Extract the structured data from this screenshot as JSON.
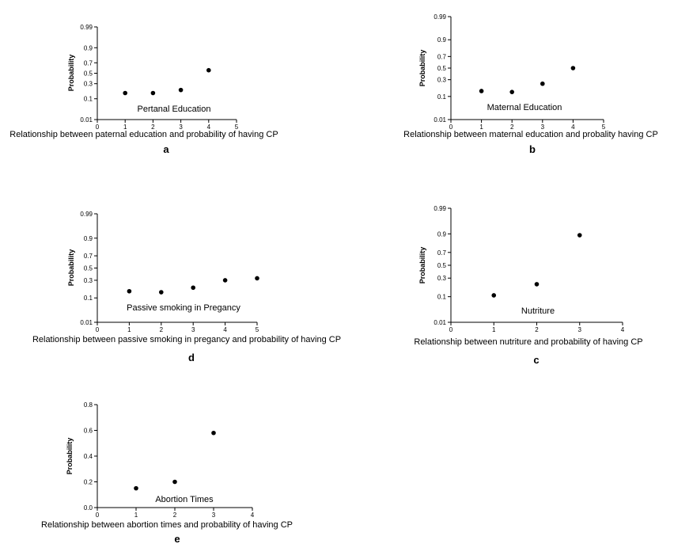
{
  "chart_data": [
    {
      "type": "scatter",
      "panel_label": "a",
      "ylabel": "Probability",
      "xlabel": "Relationship between paternal education and probability of having CP",
      "annotation": "Pertanal   Education",
      "xlim": [
        0,
        5
      ],
      "x_ticks": [
        "0",
        "1",
        "2",
        "3",
        "4",
        "5"
      ],
      "y_scale": "probit",
      "y_ticks": [
        "0.01",
        "0.1",
        "0.3",
        "0.5",
        "0.7",
        "0.9",
        "0.99"
      ],
      "x": [
        1,
        2,
        3,
        4
      ],
      "y": [
        0.16,
        0.16,
        0.2,
        0.56
      ]
    },
    {
      "type": "scatter",
      "panel_label": "b",
      "ylabel": "Probability",
      "xlabel": "Relationship between maternal education and probality having CP",
      "annotation": "Maternal   Education",
      "xlim": [
        0,
        5
      ],
      "x_ticks": [
        "0",
        "1",
        "2",
        "3",
        "4",
        "5"
      ],
      "y_scale": "probit",
      "y_ticks": [
        "0.01",
        "0.1",
        "0.3",
        "0.5",
        "0.7",
        "0.9",
        "0.99"
      ],
      "x": [
        1,
        2,
        3,
        4
      ],
      "y": [
        0.15,
        0.14,
        0.24,
        0.5
      ]
    },
    {
      "type": "scatter",
      "panel_label": "d",
      "ylabel": "Probability",
      "xlabel": "Relationship between passive smoking in pregancy and probability of having CP",
      "annotation": "Passive smoking in Pregancy",
      "xlim": [
        0,
        5
      ],
      "x_ticks": [
        "0",
        "1",
        "2",
        "3",
        "4",
        "5"
      ],
      "y_scale": "probit",
      "y_ticks": [
        "0.01",
        "0.1",
        "0.3",
        "0.5",
        "0.7",
        "0.9",
        "0.99"
      ],
      "x": [
        1,
        2,
        3,
        4,
        5
      ],
      "y": [
        0.16,
        0.15,
        0.2,
        0.3,
        0.33
      ]
    },
    {
      "type": "scatter",
      "panel_label": "c",
      "ylabel": "Probability",
      "xlabel": "Relationship between nutriture and probability of having CP",
      "annotation": "Nutriture",
      "xlim": [
        0,
        4
      ],
      "x_ticks": [
        "0",
        "1",
        "2",
        "3",
        "4"
      ],
      "y_scale": "probit",
      "y_ticks": [
        "0.01",
        "0.1",
        "0.3",
        "0.5",
        "0.7",
        "0.9",
        "0.99"
      ],
      "x": [
        1,
        2,
        3
      ],
      "y": [
        0.11,
        0.22,
        0.89
      ]
    },
    {
      "type": "scatter",
      "panel_label": "e",
      "ylabel": "Probability",
      "xlabel": "Relationship between abortion times and probability of having CP",
      "annotation": "Abortion Times",
      "xlim": [
        0,
        4
      ],
      "x_ticks": [
        "0",
        "1",
        "2",
        "3",
        "4"
      ],
      "y_scale": "linear",
      "ylim": [
        0,
        0.8
      ],
      "y_ticks": [
        "0.0",
        "0.2",
        "0.4",
        "0.6",
        "0.8"
      ],
      "x": [
        1,
        2,
        3
      ],
      "y": [
        0.15,
        0.2,
        0.58
      ]
    }
  ]
}
